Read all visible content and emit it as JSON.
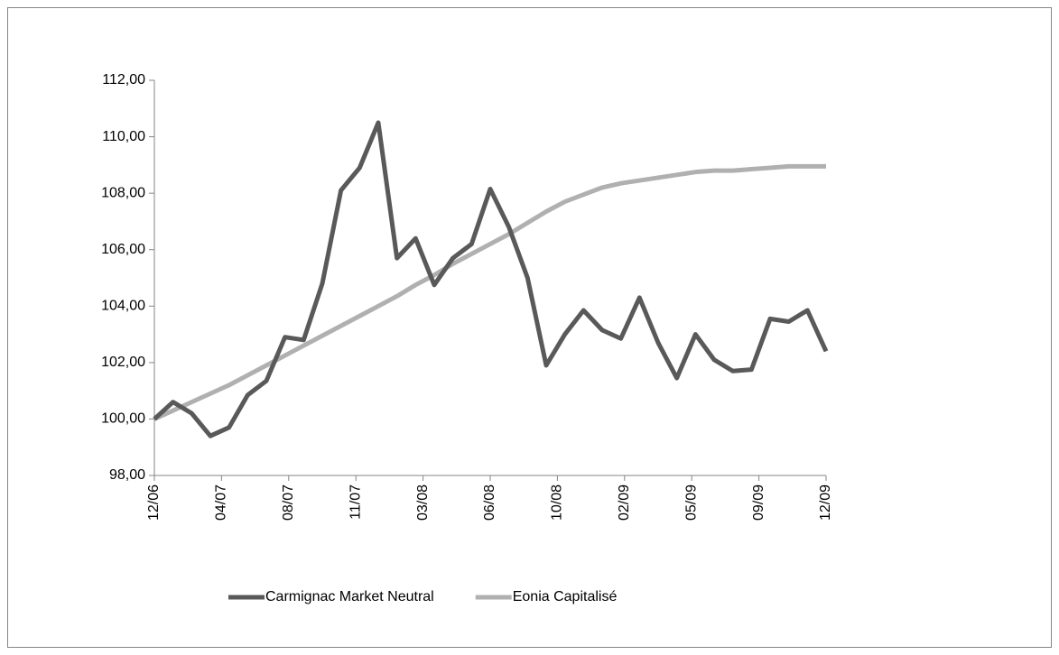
{
  "chart_data": {
    "type": "line",
    "x": [
      0,
      1,
      2,
      3,
      4,
      5,
      6,
      7,
      8,
      9,
      10,
      11,
      12,
      13,
      14,
      15,
      16,
      17,
      18,
      19,
      20,
      21,
      22,
      23,
      24,
      25,
      26,
      27,
      28,
      29,
      30,
      31,
      32,
      33,
      34,
      35,
      36
    ],
    "xlim": [
      0,
      36
    ],
    "xticks": [
      {
        "value": 0,
        "label": "12/06"
      },
      {
        "value": 3.6,
        "label": "04/07"
      },
      {
        "value": 7.2,
        "label": "08/07"
      },
      {
        "value": 10.8,
        "label": "11/07"
      },
      {
        "value": 14.4,
        "label": "03/08"
      },
      {
        "value": 18,
        "label": "06/08"
      },
      {
        "value": 21.6,
        "label": "10/08"
      },
      {
        "value": 25.2,
        "label": "02/09"
      },
      {
        "value": 28.8,
        "label": "05/09"
      },
      {
        "value": 32.4,
        "label": "09/09"
      },
      {
        "value": 36,
        "label": "12/09"
      }
    ],
    "ylim": [
      98,
      112
    ],
    "yticks": [
      {
        "value": 98,
        "label": "98,00"
      },
      {
        "value": 100,
        "label": "100,00"
      },
      {
        "value": 102,
        "label": "102,00"
      },
      {
        "value": 104,
        "label": "104,00"
      },
      {
        "value": 106,
        "label": "106,00"
      },
      {
        "value": 108,
        "label": "108,00"
      },
      {
        "value": 110,
        "label": "110,00"
      },
      {
        "value": 112,
        "label": "112,00"
      }
    ],
    "legend": "bottom",
    "series": [
      {
        "name": "Carmignac Market Neutral",
        "color": "#595959",
        "values": [
          100,
          100.6,
          100.2,
          99.4,
          99.7,
          100.85,
          101.35,
          102.9,
          102.8,
          104.8,
          108.1,
          108.9,
          110.5,
          105.7,
          106.4,
          104.75,
          105.7,
          106.2,
          108.15,
          106.8,
          105,
          101.9,
          103,
          103.85,
          103.15,
          102.85,
          104.3,
          102.7,
          101.45,
          103,
          102.1,
          101.7,
          101.75,
          103.55,
          103.45,
          103.85,
          102.4
        ]
      },
      {
        "name": "Eonia Capitalisé",
        "color": "#b0b0b0",
        "values": [
          100,
          100.3,
          100.6,
          100.9,
          101.2,
          101.55,
          101.9,
          102.25,
          102.6,
          102.95,
          103.3,
          103.65,
          104,
          104.35,
          104.75,
          105.1,
          105.5,
          105.85,
          106.2,
          106.55,
          106.95,
          107.35,
          107.7,
          107.95,
          108.2,
          108.35,
          108.45,
          108.55,
          108.65,
          108.75,
          108.8,
          108.8,
          108.85,
          108.9,
          108.95,
          108.95,
          108.95
        ]
      }
    ]
  }
}
